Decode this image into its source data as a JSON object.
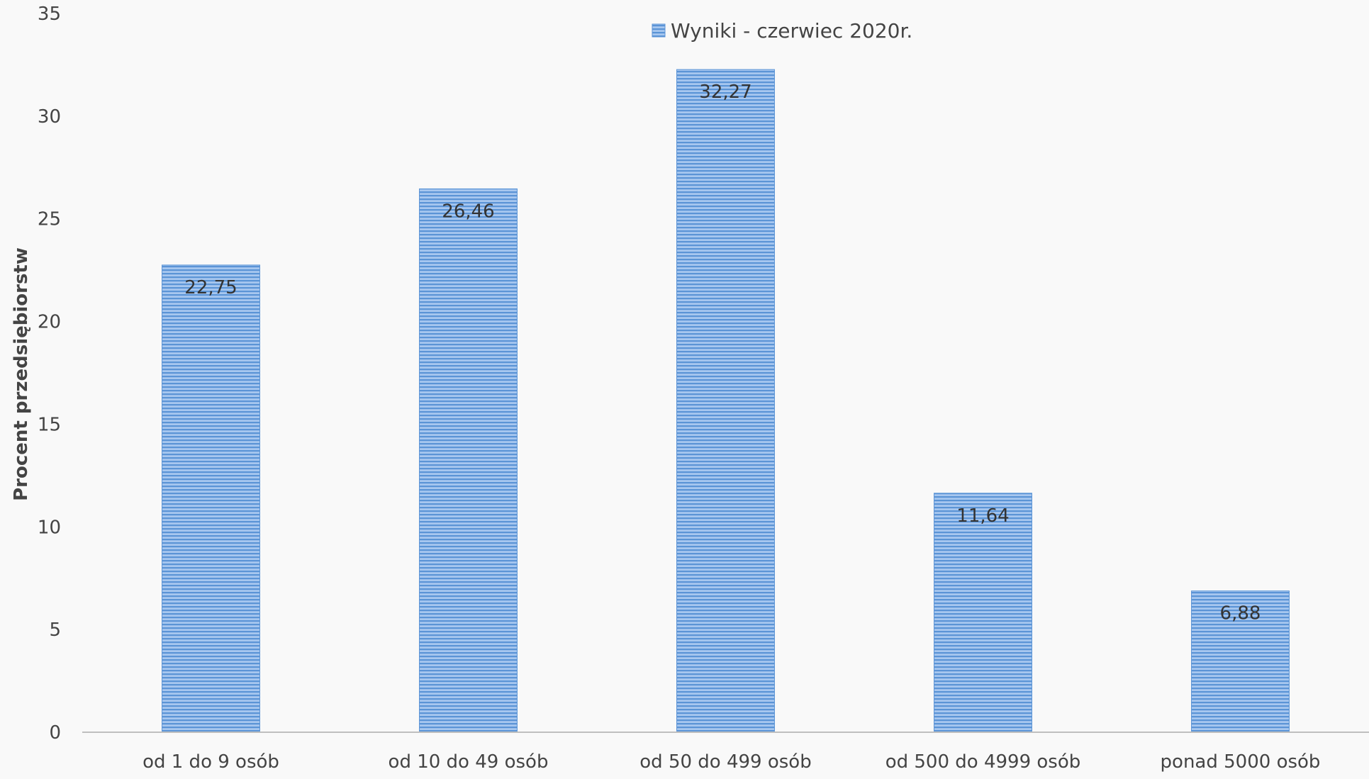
{
  "chart_data": {
    "type": "bar",
    "categories": [
      "od 1 do 9 osób",
      "od 10 do 49 osób",
      "od 50 do 499 osób",
      "od 500 do 4999 osób",
      "ponad 5000 osób"
    ],
    "series": [
      {
        "name": "Wyniki - czerwiec 2020r.",
        "values": [
          22.75,
          26.46,
          32.27,
          11.64,
          6.88
        ],
        "labels": [
          "22,75",
          "26,46",
          "32,27",
          "11,64",
          "6,88"
        ]
      }
    ],
    "ylabel": "Procent przedsiębiorstw",
    "xlabel": "",
    "ylim": [
      0,
      35
    ],
    "yticks": [
      0,
      5,
      10,
      15,
      20,
      25,
      30,
      35
    ],
    "grid": false,
    "legend_position": "top-center",
    "colors": {
      "bar_light": "#a7c7ef",
      "bar_stripe": "#5b94d6",
      "axis": "#bfbfbf",
      "legend_swatch": "#5b94d6"
    }
  }
}
